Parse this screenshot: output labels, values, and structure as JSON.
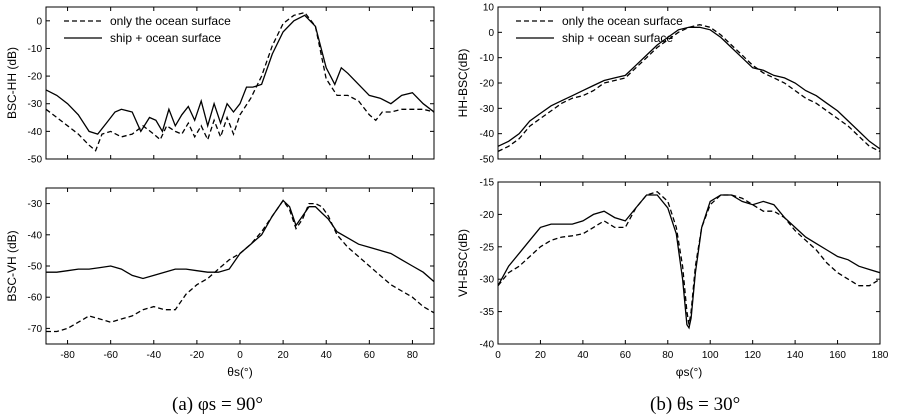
{
  "chart_data": [
    {
      "type": "line",
      "id": "a-top",
      "ylabel": "BSC-HH (dB)",
      "xlim": [
        -90,
        90
      ],
      "ylim": [
        -50,
        5
      ],
      "xticks": [],
      "yticks": [
        0,
        -10,
        -20,
        -30,
        -40,
        -50
      ],
      "legend": "top",
      "series": [
        {
          "name": "only the ocean surface",
          "style": "dashed",
          "x": [
            -90,
            -85,
            -80,
            -75,
            -70,
            -67,
            -64,
            -60,
            -55,
            -50,
            -45,
            -40,
            -37,
            -34,
            -30,
            -27,
            -24,
            -21,
            -18,
            -15,
            -12,
            -9,
            -6,
            -3,
            0,
            5,
            10,
            15,
            20,
            25,
            30,
            35,
            40,
            45,
            50,
            55,
            60,
            63,
            66,
            70,
            75,
            80,
            85,
            90
          ],
          "y": [
            -32,
            -35,
            -38,
            -41,
            -45,
            -47,
            -41,
            -40,
            -42,
            -41,
            -38,
            -41,
            -43,
            -38,
            -40,
            -41,
            -37,
            -42,
            -38,
            -43,
            -36,
            -42,
            -35,
            -41,
            -34,
            -28,
            -20,
            -9,
            -1,
            2,
            3,
            -2,
            -21,
            -27,
            -27,
            -29,
            -34,
            -36,
            -33,
            -33,
            -32,
            -32,
            -32,
            -33
          ]
        },
        {
          "name": "ship + ocean surface",
          "style": "solid",
          "x": [
            -90,
            -85,
            -80,
            -75,
            -70,
            -66,
            -62,
            -58,
            -55,
            -50,
            -46,
            -42,
            -39,
            -36,
            -33,
            -30,
            -27,
            -24,
            -21,
            -18,
            -15,
            -12,
            -9,
            -6,
            -3,
            0,
            3,
            6,
            10,
            15,
            20,
            25,
            30,
            35,
            40,
            44,
            47,
            50,
            55,
            60,
            65,
            70,
            75,
            80,
            85,
            90
          ],
          "y": [
            -25,
            -27,
            -30,
            -34,
            -40,
            -41,
            -37,
            -33,
            -32,
            -33,
            -40,
            -35,
            -36,
            -40,
            -32,
            -38,
            -34,
            -31,
            -36,
            -29,
            -38,
            -30,
            -37,
            -30,
            -33,
            -30,
            -24,
            -24,
            -23,
            -12,
            -4,
            0,
            2,
            -2,
            -17,
            -23,
            -17,
            -19,
            -23,
            -27,
            -28,
            -30,
            -27,
            -26,
            -30,
            -33
          ]
        }
      ]
    },
    {
      "type": "line",
      "id": "a-bottom",
      "ylabel": "BSC-VH (dB)",
      "xlabel": "θs(°)",
      "xlim": [
        -90,
        90
      ],
      "ylim": [
        -75,
        -25
      ],
      "xticks": [
        -80,
        -60,
        -40,
        -20,
        0,
        20,
        40,
        60,
        80
      ],
      "yticks": [
        -30,
        -40,
        -50,
        -60,
        -70
      ],
      "series": [
        {
          "name": "only the ocean surface",
          "style": "dashed",
          "x": [
            -90,
            -85,
            -80,
            -75,
            -70,
            -65,
            -60,
            -55,
            -50,
            -45,
            -40,
            -35,
            -30,
            -25,
            -20,
            -15,
            -10,
            -5,
            0,
            5,
            10,
            15,
            20,
            23,
            26,
            29,
            32,
            35,
            38,
            41,
            45,
            50,
            55,
            60,
            65,
            70,
            75,
            80,
            85,
            90
          ],
          "y": [
            -71,
            -71,
            -70,
            -68,
            -66,
            -67,
            -68,
            -67,
            -66,
            -64,
            -63,
            -64,
            -64,
            -59,
            -56,
            -54,
            -51,
            -48,
            -46,
            -43,
            -39,
            -34,
            -29,
            -32,
            -38,
            -35,
            -30,
            -30,
            -31,
            -34,
            -40,
            -44,
            -47,
            -50,
            -53,
            -56,
            -58,
            -60,
            -63,
            -65
          ]
        },
        {
          "name": "ship + ocean surface",
          "style": "solid",
          "x": [
            -90,
            -85,
            -80,
            -75,
            -70,
            -65,
            -60,
            -55,
            -50,
            -45,
            -40,
            -35,
            -30,
            -25,
            -20,
            -15,
            -10,
            -5,
            0,
            5,
            10,
            15,
            20,
            23,
            26,
            29,
            32,
            35,
            38,
            41,
            45,
            50,
            55,
            60,
            65,
            70,
            75,
            80,
            85,
            90
          ],
          "y": [
            -52,
            -52,
            -51.5,
            -51,
            -51,
            -50.5,
            -50,
            -51,
            -53,
            -54,
            -53,
            -52,
            -51,
            -51,
            -51.5,
            -52,
            -52,
            -51,
            -46,
            -43,
            -40,
            -34,
            -29,
            -31,
            -37,
            -34,
            -31,
            -31,
            -33,
            -35,
            -39,
            -41,
            -43,
            -44,
            -45,
            -46,
            -48,
            -50,
            -52,
            -55
          ]
        }
      ]
    },
    {
      "type": "line",
      "id": "b-top",
      "ylabel": "HH-BSC(dB)",
      "xlim": [
        0,
        180
      ],
      "ylim": [
        -50,
        10
      ],
      "xticks": [],
      "yticks": [
        10,
        0,
        -10,
        -20,
        -30,
        -40,
        -50
      ],
      "legend": "top",
      "series": [
        {
          "name": "only the ocean surface",
          "style": "dashed",
          "x": [
            0,
            5,
            10,
            15,
            20,
            25,
            30,
            35,
            40,
            45,
            50,
            55,
            60,
            65,
            70,
            75,
            80,
            85,
            90,
            95,
            100,
            105,
            110,
            115,
            120,
            125,
            130,
            135,
            140,
            145,
            150,
            155,
            160,
            165,
            170,
            175,
            180
          ],
          "y": [
            -47,
            -45,
            -42,
            -37,
            -34,
            -31,
            -28,
            -26,
            -25,
            -23,
            -20,
            -19,
            -18,
            -14,
            -10,
            -6,
            -3,
            0,
            2,
            3,
            2,
            -1,
            -5,
            -9,
            -13,
            -16,
            -18,
            -20,
            -23,
            -26,
            -28,
            -31,
            -34,
            -37,
            -41,
            -45,
            -47
          ]
        },
        {
          "name": "ship + ocean surface",
          "style": "solid",
          "x": [
            0,
            5,
            10,
            15,
            20,
            25,
            30,
            35,
            40,
            45,
            50,
            55,
            60,
            65,
            70,
            75,
            80,
            85,
            90,
            95,
            100,
            105,
            110,
            115,
            120,
            125,
            130,
            135,
            140,
            145,
            150,
            155,
            160,
            165,
            170,
            175,
            180
          ],
          "y": [
            -45,
            -43,
            -40,
            -35,
            -32,
            -29,
            -27,
            -25,
            -23,
            -21,
            -19,
            -18,
            -17,
            -13,
            -9,
            -5,
            -2,
            1,
            2,
            2,
            1,
            -2,
            -6,
            -10,
            -14,
            -15,
            -17,
            -18,
            -20,
            -23,
            -25,
            -28,
            -31,
            -35,
            -39,
            -43,
            -46
          ]
        }
      ]
    },
    {
      "type": "line",
      "id": "b-bottom",
      "ylabel": "VH-BSC(dB)",
      "xlabel": "φs(°)",
      "xlim": [
        0,
        180
      ],
      "ylim": [
        -40,
        -15
      ],
      "xticks": [
        0,
        20,
        40,
        60,
        80,
        100,
        120,
        140,
        160,
        180
      ],
      "yticks": [
        -15,
        -20,
        -25,
        -30,
        -35,
        -40
      ],
      "series": [
        {
          "name": "only the ocean surface",
          "style": "dashed",
          "x": [
            0,
            5,
            10,
            15,
            20,
            25,
            30,
            35,
            40,
            45,
            50,
            55,
            60,
            65,
            70,
            75,
            80,
            84,
            87,
            89,
            90,
            91,
            93,
            96,
            100,
            105,
            110,
            115,
            120,
            125,
            130,
            135,
            140,
            145,
            150,
            155,
            160,
            165,
            170,
            175,
            180
          ],
          "y": [
            -31,
            -29,
            -28,
            -26.5,
            -25,
            -24,
            -23.5,
            -23.3,
            -23,
            -22,
            -21,
            -22,
            -22,
            -19,
            -17,
            -16.5,
            -18,
            -22,
            -28,
            -35,
            -37,
            -35,
            -28,
            -22,
            -18.5,
            -17,
            -17,
            -17.5,
            -18.5,
            -19.5,
            -19.5,
            -20.5,
            -22.5,
            -24,
            -25.5,
            -27.5,
            -29,
            -30,
            -31,
            -31,
            -30
          ]
        },
        {
          "name": "ship + ocean surface",
          "style": "solid",
          "x": [
            0,
            5,
            10,
            15,
            20,
            25,
            30,
            35,
            40,
            45,
            50,
            55,
            60,
            65,
            70,
            75,
            80,
            84,
            87,
            89,
            90,
            91,
            93,
            96,
            100,
            105,
            110,
            115,
            120,
            125,
            130,
            135,
            140,
            145,
            150,
            155,
            160,
            165,
            170,
            175,
            180
          ],
          "y": [
            -31,
            -28,
            -26,
            -24,
            -22,
            -21.5,
            -21.5,
            -21.5,
            -21,
            -20,
            -19.5,
            -20.5,
            -21,
            -19,
            -17,
            -17,
            -19,
            -23,
            -30,
            -37,
            -37.5,
            -36,
            -29,
            -22,
            -18,
            -17,
            -17,
            -18,
            -18.5,
            -18,
            -18.5,
            -20.5,
            -22,
            -23.5,
            -24.5,
            -25.5,
            -26.5,
            -27,
            -28,
            -28.5,
            -29
          ]
        }
      ]
    }
  ],
  "captions": {
    "a": "(a) φs = 90°",
    "b": "(b) θs = 30°"
  }
}
